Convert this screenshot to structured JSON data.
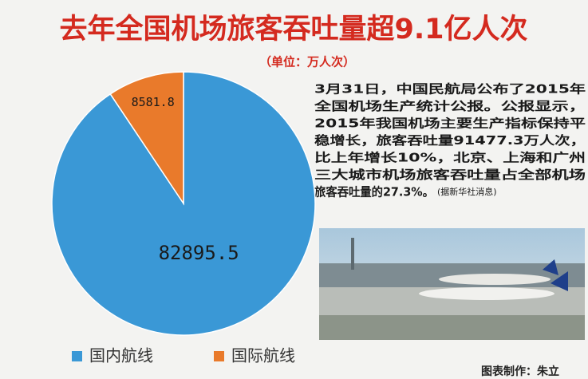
{
  "chart_data": {
    "type": "pie",
    "title": "去年全国机场旅客吞吐量超9.1亿人次",
    "subtitle": "（单位：万人次）",
    "categories": [
      "国内航线",
      "国际航线"
    ],
    "values": [
      82895.5,
      8581.8
    ],
    "colors": [
      "#3a98d6",
      "#e97a2b"
    ]
  },
  "article": {
    "lines": [
      "3月31日，中国民航局公布了2015年",
      "全国机场生产统计公报。公报显示，",
      "2015年我国机场主要生产指标保持平",
      "稳增长，旅客吞吐量91477.3万人次，",
      "比上年增长10%，北京、上海和广州",
      "三大城市机场旅客吞吐量占全部机场",
      "旅客吞吐量的27.3%。"
    ],
    "source": "(据新华社消息)"
  },
  "credit": "图表制作：朱立"
}
